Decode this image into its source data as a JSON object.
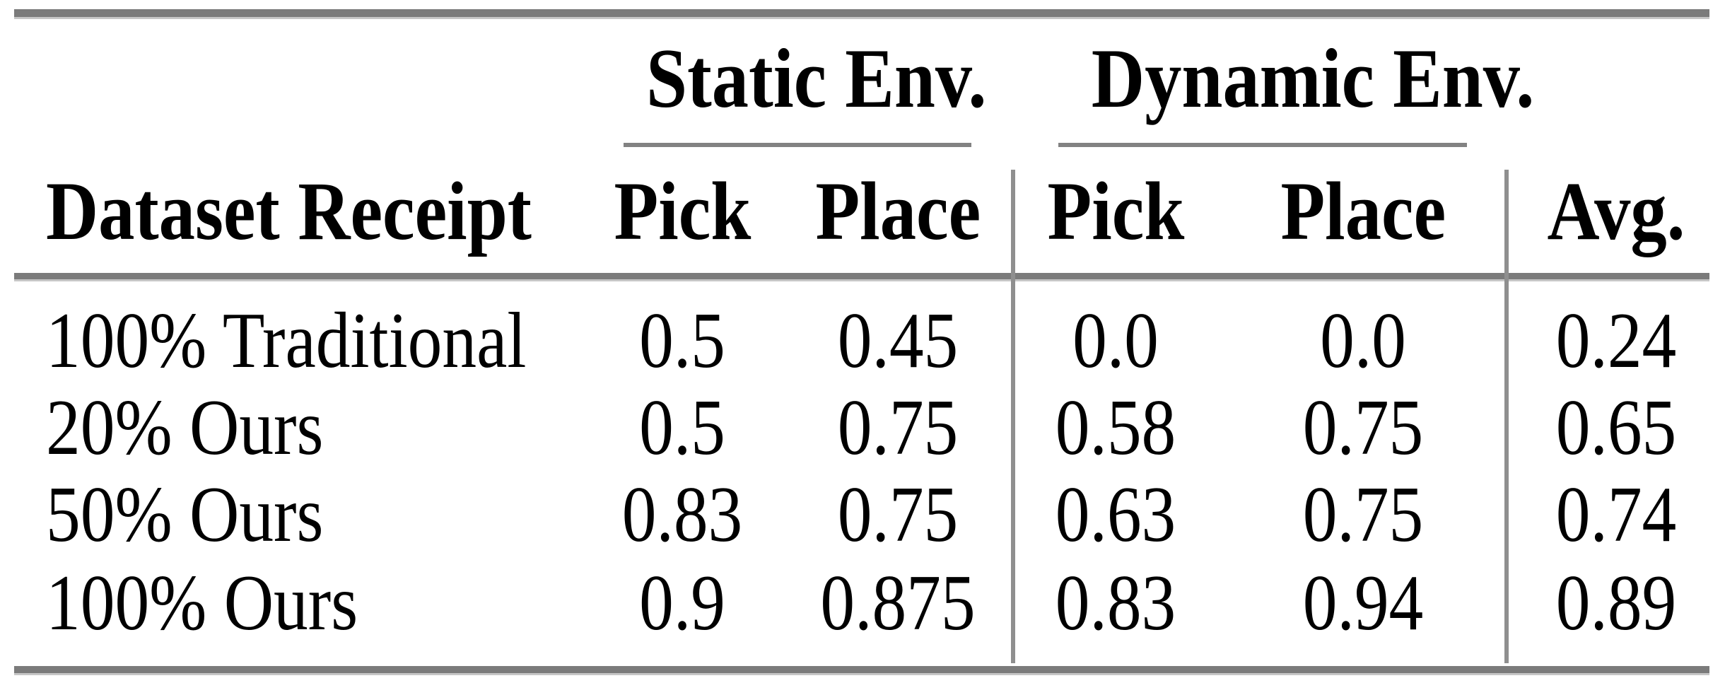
{
  "table": {
    "column_groups": [
      {
        "label": "Static Env."
      },
      {
        "label": "Dynamic Env."
      }
    ],
    "headers": {
      "row_label": "Dataset Receipt",
      "static_pick": "Pick",
      "static_place": "Place",
      "dynamic_pick": "Pick",
      "dynamic_place": "Place",
      "avg": "Avg."
    },
    "rows": [
      {
        "label": "100% Traditional",
        "static_pick": "0.5",
        "static_place": "0.45",
        "dynamic_pick": "0.0",
        "dynamic_place": "0.0",
        "avg": "0.24"
      },
      {
        "label": "20% Ours",
        "static_pick": "0.5",
        "static_place": "0.75",
        "dynamic_pick": "0.58",
        "dynamic_place": "0.75",
        "avg": "0.65"
      },
      {
        "label": "50% Ours",
        "static_pick": "0.83",
        "static_place": "0.75",
        "dynamic_pick": "0.63",
        "dynamic_place": "0.75",
        "avg": "0.74"
      },
      {
        "label": "100% Ours",
        "static_pick": "0.9",
        "static_place": "0.875",
        "dynamic_pick": "0.83",
        "dynamic_place": "0.94",
        "avg": "0.89"
      }
    ]
  },
  "colors": {
    "text": "#000000",
    "background": "#ffffff",
    "rule_heavy": "#7b7b7b",
    "rule_halo": "#c6c6c6",
    "rule_group_underline": "#828282",
    "rule_vertical": "#8f8f8f"
  }
}
